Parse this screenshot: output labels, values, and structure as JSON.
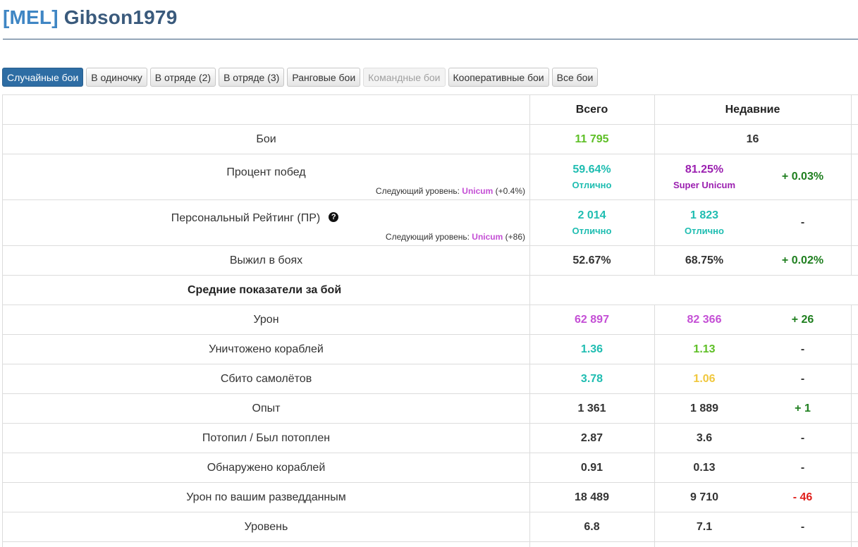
{
  "header": {
    "clan": "[MEL]",
    "name": "Gibson1979"
  },
  "tabs": [
    {
      "label": "Случайные бои",
      "state": "active"
    },
    {
      "label": "В одиночку",
      "state": "normal"
    },
    {
      "label": "В отряде (2)",
      "state": "normal"
    },
    {
      "label": "В отряде (3)",
      "state": "normal"
    },
    {
      "label": "Ранговые бои",
      "state": "normal"
    },
    {
      "label": "Командные бои",
      "state": "disabled"
    },
    {
      "label": "Кооперативные бои",
      "state": "normal"
    },
    {
      "label": "Все бои",
      "state": "normal"
    }
  ],
  "table": {
    "col_total": "Всего",
    "col_recent": "Недавние",
    "section_avg": "Средние показатели за бой",
    "rows": {
      "battles": {
        "label": "Бои",
        "total": "11 795",
        "recent": "16",
        "diff": ""
      },
      "winrate": {
        "label": "Процент побед",
        "total": "59.64%",
        "total_rank": "Отлично",
        "recent": "81.25%",
        "recent_rank": "Super Unicum",
        "diff": "+ 0.03%",
        "next_prefix": "Следующий уровень: ",
        "next_level": "Unicum",
        "next_delta": " (+0.4%)"
      },
      "pr": {
        "label": "Персональный Рейтинг (ПР)",
        "total": "2 014",
        "total_rank": "Отлично",
        "recent": "1 823",
        "recent_rank": "Отлично",
        "diff": "-",
        "next_prefix": "Следующий уровень: ",
        "next_level": "Unicum",
        "next_delta": " (+86)"
      },
      "survived": {
        "label": "Выжил в боях",
        "total": "52.67%",
        "recent": "68.75%",
        "diff": "+ 0.02%"
      },
      "damage": {
        "label": "Урон",
        "total": "62 897",
        "recent": "82 366",
        "diff": "+ 26"
      },
      "kills": {
        "label": "Уничтожено кораблей",
        "total": "1.36",
        "recent": "1.13",
        "diff": "-"
      },
      "planes": {
        "label": "Сбито самолётов",
        "total": "3.78",
        "recent": "1.06",
        "diff": "-"
      },
      "xp": {
        "label": "Опыт",
        "total": "1 361",
        "recent": "1 889",
        "diff": "+ 1"
      },
      "kd": {
        "label": "Потопил / Был потоплен",
        "total": "2.87",
        "recent": "3.6",
        "diff": "-"
      },
      "spotted": {
        "label": "Обнаружено кораблей",
        "total": "0.91",
        "recent": "0.13",
        "diff": "-"
      },
      "scout_dmg": {
        "label": "Урон по вашим разведданным",
        "total": "18 489",
        "recent": "9 710",
        "diff": "- 46"
      },
      "tier": {
        "label": "Уровень",
        "total": "6.8",
        "recent": "7.1",
        "diff": "-"
      }
    }
  },
  "colors": {
    "title": "#3a5a7c",
    "clan": "#3f86c4",
    "active_tab": "#2e6da4",
    "great": "#1fbdb1",
    "good": "#5ebf26",
    "super_unicum": "#9b1fb0",
    "unicum": "#c44fd5",
    "average": "#f0c73d",
    "positive": "#1f7f1f",
    "negative": "#e0201c"
  },
  "icons": {
    "help": "question-circle-icon"
  }
}
